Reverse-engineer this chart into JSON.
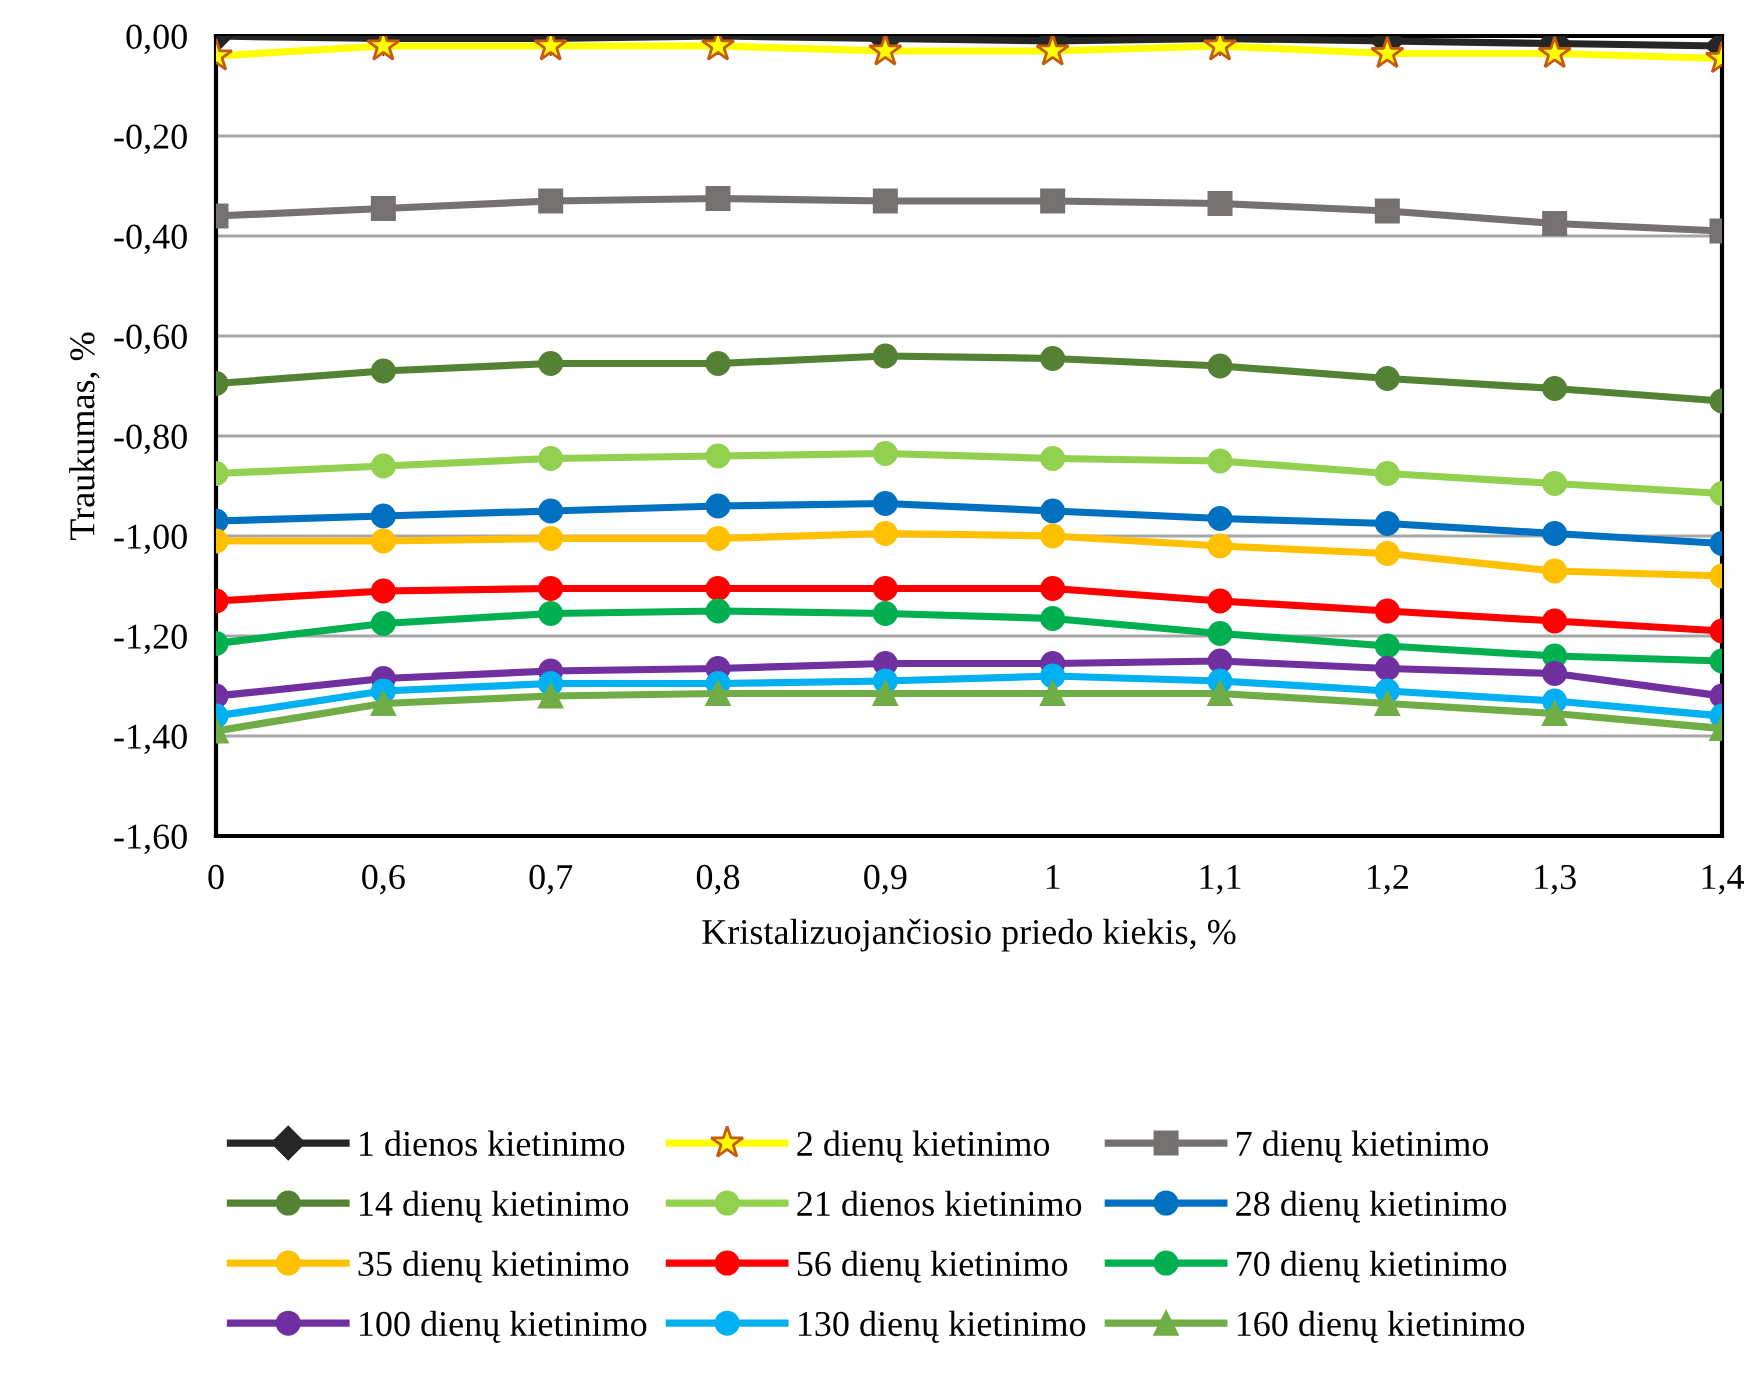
{
  "chart_data": {
    "type": "line",
    "xlabel": "Kristalizuojančiosio priedo kiekis, %",
    "ylabel": "Traukumas, %",
    "categories": [
      "0",
      "0,6",
      "0,7",
      "0,8",
      "0,9",
      "1",
      "1,1",
      "1,2",
      "1,3",
      "1,4"
    ],
    "ylim": [
      -1.6,
      0
    ],
    "yticks": [
      {
        "value": 0,
        "label": "0,00"
      },
      {
        "value": -0.2,
        "label": "-0,20"
      },
      {
        "value": -0.4,
        "label": "-0,40"
      },
      {
        "value": -0.6,
        "label": "-0,60"
      },
      {
        "value": -0.8,
        "label": "-0,80"
      },
      {
        "value": -1.0,
        "label": "-1,00"
      },
      {
        "value": -1.2,
        "label": "-1,20"
      },
      {
        "value": -1.4,
        "label": "-1,40"
      },
      {
        "value": -1.6,
        "label": "-1,60"
      }
    ],
    "grid": "y",
    "legend": "bottom",
    "series": [
      {
        "name": "1 dienos kietinimo",
        "color": "#262626",
        "marker": "diamond",
        "values": [
          0.0,
          -0.005,
          -0.005,
          0.0,
          -0.005,
          -0.01,
          -0.005,
          -0.01,
          -0.015,
          -0.02
        ]
      },
      {
        "name": "2 dienų kietinimo",
        "color": "#ffff00",
        "marker": "star",
        "values": [
          -0.04,
          -0.02,
          -0.02,
          -0.02,
          -0.03,
          -0.03,
          -0.02,
          -0.035,
          -0.035,
          -0.045
        ]
      },
      {
        "name": "7 dienų kietinimo",
        "color": "#767171",
        "marker": "square",
        "values": [
          -0.36,
          -0.345,
          -0.33,
          -0.325,
          -0.33,
          -0.33,
          -0.335,
          -0.35,
          -0.375,
          -0.39
        ]
      },
      {
        "name": "14 dienų kietinimo",
        "color": "#548235",
        "marker": "circle",
        "values": [
          -0.695,
          -0.67,
          -0.655,
          -0.655,
          -0.64,
          -0.645,
          -0.66,
          -0.685,
          -0.705,
          -0.73
        ]
      },
      {
        "name": "21 dienos kietinimo",
        "color": "#92d050",
        "marker": "circle",
        "values": [
          -0.875,
          -0.86,
          -0.845,
          -0.84,
          -0.835,
          -0.845,
          -0.85,
          -0.875,
          -0.895,
          -0.915
        ]
      },
      {
        "name": "28 dienų kietinimo",
        "color": "#0070c0",
        "marker": "circle",
        "values": [
          -0.97,
          -0.96,
          -0.95,
          -0.94,
          -0.935,
          -0.95,
          -0.965,
          -0.975,
          -0.995,
          -1.015
        ]
      },
      {
        "name": "35 dienų kietinimo",
        "color": "#ffc000",
        "marker": "circle",
        "values": [
          -1.01,
          -1.01,
          -1.005,
          -1.005,
          -0.995,
          -1.0,
          -1.02,
          -1.035,
          -1.07,
          -1.08
        ]
      },
      {
        "name": "56 dienų kietinimo",
        "color": "#ff0000",
        "marker": "circle",
        "values": [
          -1.13,
          -1.11,
          -1.105,
          -1.105,
          -1.105,
          -1.105,
          -1.13,
          -1.15,
          -1.17,
          -1.19
        ]
      },
      {
        "name": "70 dienų kietinimo",
        "color": "#00b050",
        "marker": "circle",
        "values": [
          -1.215,
          -1.175,
          -1.155,
          -1.15,
          -1.155,
          -1.165,
          -1.195,
          -1.22,
          -1.24,
          -1.25
        ]
      },
      {
        "name": "100 dienų kietinimo",
        "color": "#7030a0",
        "marker": "circle",
        "values": [
          -1.32,
          -1.285,
          -1.27,
          -1.265,
          -1.255,
          -1.255,
          -1.25,
          -1.265,
          -1.275,
          -1.32
        ]
      },
      {
        "name": "130 dienų kietinimo",
        "color": "#00b0f0",
        "marker": "circle",
        "values": [
          -1.36,
          -1.31,
          -1.295,
          -1.295,
          -1.29,
          -1.28,
          -1.29,
          -1.31,
          -1.33,
          -1.36
        ]
      },
      {
        "name": "160 dienų kietinimo",
        "color": "#70ad47",
        "marker": "triangle",
        "values": [
          -1.39,
          -1.335,
          -1.32,
          -1.315,
          -1.315,
          -1.315,
          -1.315,
          -1.335,
          -1.355,
          -1.385
        ]
      }
    ]
  }
}
